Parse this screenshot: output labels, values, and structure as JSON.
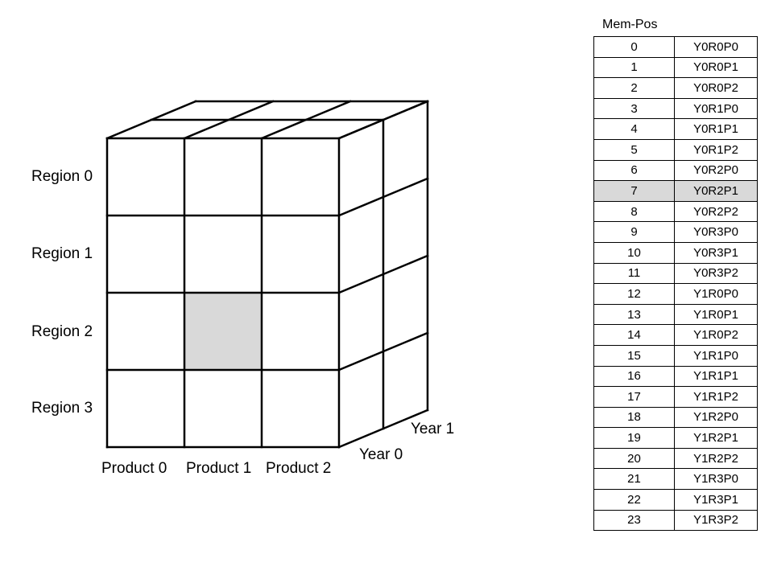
{
  "cube": {
    "regions": [
      "Region 0",
      "Region 1",
      "Region 2",
      "Region 3"
    ],
    "products": [
      "Product 0",
      "Product 1",
      "Product 2"
    ],
    "years": [
      "Year 0",
      "Year 1"
    ],
    "highlighted_cell": {
      "year": "Year 0",
      "region": "Region 2",
      "product": "Product 1"
    },
    "highlight_color": "#d9d9d9"
  },
  "memory_table": {
    "header": "Mem-Pos",
    "highlighted_pos": 7,
    "rows": [
      {
        "pos": "0",
        "key": "Y0R0P0"
      },
      {
        "pos": "1",
        "key": "Y0R0P1"
      },
      {
        "pos": "2",
        "key": "Y0R0P2"
      },
      {
        "pos": "3",
        "key": "Y0R1P0"
      },
      {
        "pos": "4",
        "key": "Y0R1P1"
      },
      {
        "pos": "5",
        "key": "Y0R1P2"
      },
      {
        "pos": "6",
        "key": "Y0R2P0"
      },
      {
        "pos": "7",
        "key": "Y0R2P1"
      },
      {
        "pos": "8",
        "key": "Y0R2P2"
      },
      {
        "pos": "9",
        "key": "Y0R3P0"
      },
      {
        "pos": "10",
        "key": "Y0R3P1"
      },
      {
        "pos": "11",
        "key": "Y0R3P2"
      },
      {
        "pos": "12",
        "key": "Y1R0P0"
      },
      {
        "pos": "13",
        "key": "Y1R0P1"
      },
      {
        "pos": "14",
        "key": "Y1R0P2"
      },
      {
        "pos": "15",
        "key": "Y1R1P0"
      },
      {
        "pos": "16",
        "key": "Y1R1P1"
      },
      {
        "pos": "17",
        "key": "Y1R1P2"
      },
      {
        "pos": "18",
        "key": "Y1R2P0"
      },
      {
        "pos": "19",
        "key": "Y1R2P1"
      },
      {
        "pos": "20",
        "key": "Y1R2P2"
      },
      {
        "pos": "21",
        "key": "Y1R3P0"
      },
      {
        "pos": "22",
        "key": "Y1R3P1"
      },
      {
        "pos": "23",
        "key": "Y1R3P2"
      }
    ]
  }
}
